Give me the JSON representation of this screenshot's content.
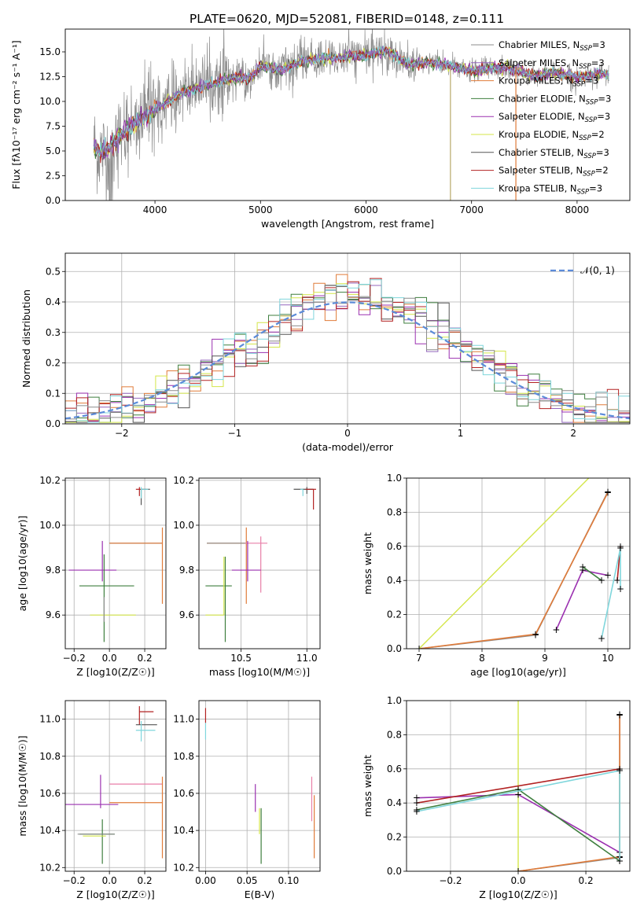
{
  "page_title": "PLATE=0620, MJD=52081, FIBERID=0148, z=0.111",
  "colors": {
    "chabrier_miles": "#8c8c8c",
    "salpeter_miles": "#9467bd",
    "kroupa_miles": "#e07b39",
    "chabrier_elodie": "#3f7f3f",
    "salpeter_elodie": "#9b30b0",
    "kroupa_elodie": "#d4e64a",
    "chabrier_stelib": "#555555",
    "salpeter_stelib": "#b22222",
    "kroupa_stelib": "#7fd6dc",
    "pink": "#e87fa8",
    "normal_curve": "#5b8bd9"
  },
  "chart_data": [
    {
      "id": "spectrum",
      "type": "line",
      "title": "PLATE=0620, MJD=52081, FIBERID=0148, z=0.111",
      "xlabel": "wavelength [Angstrom, rest frame]",
      "ylabel": "Flux [fλ10⁻¹⁷ erg cm⁻² s⁻¹ A⁻¹]",
      "xlim": [
        3150,
        8500
      ],
      "ylim": [
        0,
        17.3
      ],
      "xticks": [
        4000,
        5000,
        6000,
        7000,
        8000
      ],
      "yticks": [
        0.0,
        2.5,
        5.0,
        7.5,
        10.0,
        12.5,
        15.0
      ],
      "legend_position": "right",
      "legend": [
        {
          "label": "Chabrier MILES, N_SSP=3",
          "color": "#8c8c8c"
        },
        {
          "label": "Salpeter MILES, N_SSP=3",
          "color": "#9467bd"
        },
        {
          "label": "Kroupa MILES, N_SSP=3",
          "color": "#e07b39"
        },
        {
          "label": "Chabrier ELODIE, N_SSP=3",
          "color": "#3f7f3f"
        },
        {
          "label": "Salpeter ELODIE, N_SSP=3",
          "color": "#9b30b0"
        },
        {
          "label": "Kroupa ELODIE, N_SSP=2",
          "color": "#d4e64a"
        },
        {
          "label": "Chabrier STELIB, N_SSP=3",
          "color": "#555555"
        },
        {
          "label": "Salpeter STELIB, N_SSP=2",
          "color": "#b22222"
        },
        {
          "label": "Kroupa STELIB, N_SSP=3",
          "color": "#7fd6dc"
        }
      ],
      "model_continuum": {
        "x": [
          3420,
          3480,
          3550,
          3650,
          3750,
          3850,
          3950,
          4050,
          4150,
          4250,
          4350,
          4500,
          4650,
          4800,
          4900,
          5000,
          5200,
          5400,
          5600,
          5800,
          6000,
          6200,
          6400,
          6600,
          6800,
          7000,
          7200,
          7400,
          7600,
          7800,
          8000,
          8200,
          8300
        ],
        "y": [
          5.5,
          4.9,
          5.0,
          6.5,
          7.3,
          8.0,
          8.8,
          9.5,
          10.2,
          10.8,
          11.2,
          11.7,
          12.1,
          12.5,
          12.3,
          13.6,
          13.2,
          14.1,
          14.3,
          14.5,
          14.7,
          15.1,
          13.7,
          13.9,
          13.6,
          13.0,
          13.4,
          13.2,
          12.6,
          12.9,
          12.4,
          12.8,
          12.6
        ]
      }
    },
    {
      "id": "residuals",
      "type": "line",
      "xlabel": "(data-model)/error",
      "ylabel": "Normed distribution",
      "xlim": [
        -2.5,
        2.5
      ],
      "ylim": [
        0,
        0.56
      ],
      "xticks": [
        -2,
        -1,
        0,
        1,
        2
      ],
      "yticks": [
        0.0,
        0.1,
        0.2,
        0.3,
        0.4,
        0.5
      ],
      "grid": true,
      "legend_position": "top-right",
      "normal_label": "𝒩(0, 1)",
      "bin_width": 0.1
    },
    {
      "id": "age_vs_Z",
      "type": "scatter",
      "xlabel": "Z [log10(Z/Z☉)]",
      "ylabel": "age  [log10(age/yr)]",
      "xlim": [
        -0.25,
        0.32
      ],
      "ylim": [
        9.45,
        10.21
      ],
      "xticks": [
        -0.2,
        0.0,
        0.2
      ],
      "yticks": [
        9.6,
        9.8,
        10.0,
        10.2
      ],
      "grid": true
    },
    {
      "id": "age_vs_mass",
      "type": "scatter",
      "xlabel": "mass [log10(M/M☉)]",
      "xlim": [
        10.18,
        11.1
      ],
      "ylim": [
        9.45,
        10.21
      ],
      "xticks": [
        10.5,
        11.0
      ],
      "yticks": [
        9.6,
        9.8,
        10.0,
        10.2
      ],
      "grid": true
    },
    {
      "id": "weight_vs_age",
      "type": "line",
      "xlabel": "age  [log10(age/yr)]",
      "ylabel": "mass weight",
      "xlim": [
        6.8,
        10.35
      ],
      "ylim": [
        0,
        1.0
      ],
      "xticks": [
        7,
        8,
        9,
        10
      ],
      "yticks": [
        0.0,
        0.2,
        0.4,
        0.6,
        0.8,
        1.0
      ],
      "grid": true
    },
    {
      "id": "mass_vs_Z",
      "type": "scatter",
      "xlabel": "Z [log10(Z/Z☉)]",
      "ylabel": "mass [log10(M/M☉)]",
      "xlim": [
        -0.25,
        0.32
      ],
      "ylim": [
        10.18,
        11.1
      ],
      "xticks": [
        -0.2,
        0.0,
        0.2
      ],
      "yticks": [
        10.2,
        10.4,
        10.6,
        10.8,
        11.0
      ],
      "grid": true
    },
    {
      "id": "mass_vs_ebv",
      "type": "scatter",
      "xlabel": "E(B-V)",
      "xlim": [
        -0.008,
        0.138
      ],
      "ylim": [
        10.18,
        11.1
      ],
      "xticks": [
        0.0,
        0.05,
        0.1
      ],
      "yticks": [
        10.2,
        10.4,
        10.6,
        10.8,
        11.0
      ],
      "grid": true
    },
    {
      "id": "weight_vs_Z",
      "type": "line",
      "xlabel": "Z [log10(Z/Z☉)]",
      "ylabel": "mass weight",
      "xlim": [
        -0.33,
        0.33
      ],
      "ylim": [
        0,
        1.0
      ],
      "xticks": [
        -0.2,
        0.0,
        0.2
      ],
      "yticks": [
        0.0,
        0.2,
        0.4,
        0.6,
        0.8,
        1.0
      ],
      "grid": true
    }
  ]
}
